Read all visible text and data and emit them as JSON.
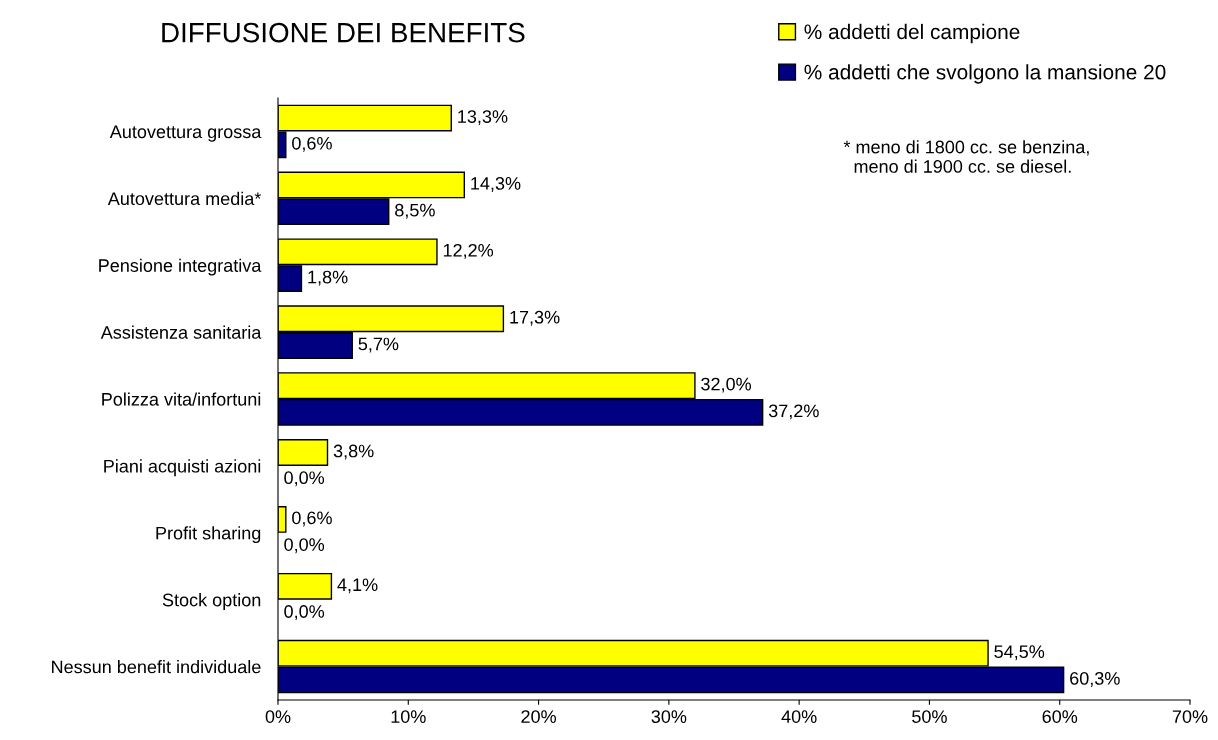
{
  "chart_data": {
    "type": "bar",
    "orientation": "horizontal",
    "title": "DIFFUSIONE DEI BENEFITS",
    "categories": [
      "Autovettura grossa",
      "Autovettura media*",
      "Pensione integrativa",
      "Assistenza sanitaria",
      "Polizza vita/infortuni",
      "Piani acquisti azioni",
      "Profit sharing",
      "Stock option",
      "Nessun benefit individuale"
    ],
    "series": [
      {
        "name": "% addetti del campione",
        "color": "#ffff00",
        "values": [
          13.3,
          14.3,
          12.2,
          17.3,
          32.0,
          3.8,
          0.6,
          4.1,
          54.5
        ],
        "value_labels": [
          "13,3%",
          "14,3%",
          "12,2%",
          "17,3%",
          "32,0%",
          "3,8%",
          "0,6%",
          "4,1%",
          "54,5%"
        ]
      },
      {
        "name": "% addetti che svolgono la mansione 20",
        "color": "#000080",
        "values": [
          0.6,
          8.5,
          1.8,
          5.7,
          37.2,
          0.0,
          0.0,
          0.0,
          60.3
        ],
        "value_labels": [
          "0,6%",
          "8,5%",
          "1,8%",
          "5,7%",
          "37,2%",
          "0,0%",
          "0,0%",
          "0,0%",
          "60,3%"
        ]
      }
    ],
    "xlim": [
      0,
      70
    ],
    "xticks": [
      {
        "value": 0,
        "label": "0%"
      },
      {
        "value": 10,
        "label": "10%"
      },
      {
        "value": 20,
        "label": "20%"
      },
      {
        "value": 30,
        "label": "30%"
      },
      {
        "value": 40,
        "label": "40%"
      },
      {
        "value": 50,
        "label": "50%"
      },
      {
        "value": 60,
        "label": "60%"
      },
      {
        "value": 70,
        "label": "70%"
      }
    ],
    "legend": "top right",
    "grid": false,
    "annotations": [
      "* meno di 1800 cc. se benzina,\n  meno di 1900 cc. se diesel."
    ]
  }
}
